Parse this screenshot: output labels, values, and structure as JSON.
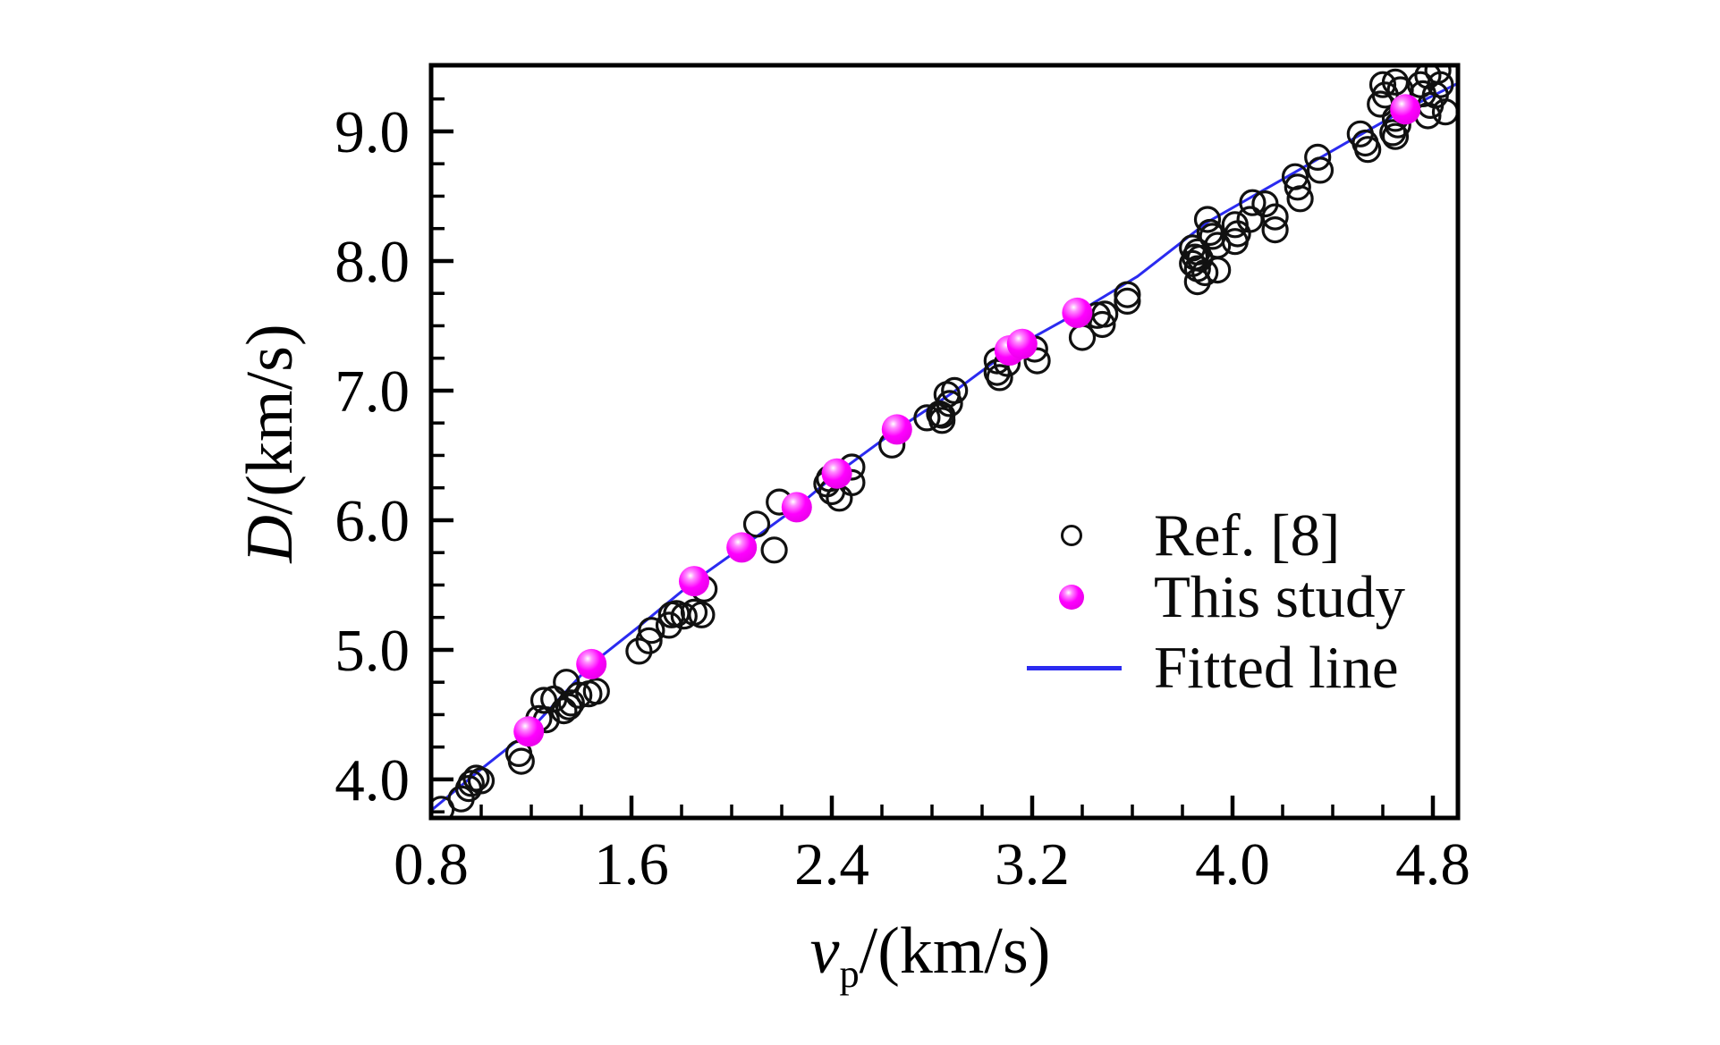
{
  "figure": {
    "background": "#ffffff"
  },
  "chart_data": {
    "type": "scatter",
    "title": "",
    "xlabel_parts": {
      "variable": "v",
      "subscript": "p",
      "unit": "/(km/s)"
    },
    "ylabel_parts": {
      "variable": "D",
      "unit": "/(km/s)"
    },
    "x_axis": {
      "min": 0.8,
      "max": 4.9,
      "major_ticks": [
        0.8,
        1.6,
        2.4,
        3.2,
        4.0,
        4.8
      ],
      "major_tick_labels": [
        "0.8",
        "1.6",
        "2.4",
        "3.2",
        "4.0",
        "4.8"
      ],
      "minor_tick_step": 0.2
    },
    "y_axis": {
      "min": 3.703,
      "max": 9.51,
      "major_ticks": [
        4.0,
        5.0,
        6.0,
        7.0,
        8.0,
        9.0
      ],
      "major_tick_labels": [
        "4.0",
        "5.0",
        "6.0",
        "7.0",
        "8.0",
        "9.0"
      ],
      "minor_tick_step": 0.25
    },
    "grid": false,
    "colors": {
      "ref8": "#111111",
      "this_study": "#ff00ff",
      "fitted_line": "#2b2bf0",
      "axis": "#000000"
    },
    "legend": {
      "position": "inside-right",
      "entries": [
        {
          "label": "Ref. [8]",
          "marker": "open-circle"
        },
        {
          "label": "This study",
          "marker": "filled-ball"
        },
        {
          "label": "Fitted line",
          "marker": "line"
        }
      ]
    },
    "series": [
      {
        "name": "Ref. [8]",
        "type": "scatter-open",
        "points": [
          [
            0.84,
            3.77
          ],
          [
            0.92,
            3.85
          ],
          [
            0.95,
            3.93
          ],
          [
            0.96,
            3.97
          ],
          [
            0.98,
            4.01
          ],
          [
            1.0,
            3.99
          ],
          [
            1.15,
            4.2
          ],
          [
            1.16,
            4.14
          ],
          [
            1.23,
            4.47
          ],
          [
            1.26,
            4.46
          ],
          [
            1.25,
            4.61
          ],
          [
            1.29,
            4.62
          ],
          [
            1.33,
            4.53
          ],
          [
            1.35,
            4.56
          ],
          [
            1.34,
            4.75
          ],
          [
            1.36,
            4.59
          ],
          [
            1.39,
            4.65
          ],
          [
            1.43,
            4.66
          ],
          [
            1.46,
            4.68
          ],
          [
            1.63,
            4.99
          ],
          [
            1.67,
            5.07
          ],
          [
            1.68,
            5.15
          ],
          [
            1.75,
            5.19
          ],
          [
            1.76,
            5.27
          ],
          [
            1.78,
            5.28
          ],
          [
            1.81,
            5.26
          ],
          [
            1.85,
            5.29
          ],
          [
            1.88,
            5.27
          ],
          [
            1.89,
            5.47
          ],
          [
            2.1,
            5.97
          ],
          [
            2.17,
            5.77
          ],
          [
            2.19,
            6.14
          ],
          [
            2.38,
            6.28
          ],
          [
            2.39,
            6.32
          ],
          [
            2.4,
            6.22
          ],
          [
            2.43,
            6.17
          ],
          [
            2.48,
            6.41
          ],
          [
            2.48,
            6.29
          ],
          [
            2.64,
            6.58
          ],
          [
            2.78,
            6.79
          ],
          [
            2.84,
            6.81
          ],
          [
            2.86,
            6.97
          ],
          [
            2.89,
            7.0
          ],
          [
            2.87,
            6.9
          ],
          [
            2.83,
            6.82
          ],
          [
            2.84,
            6.77
          ],
          [
            3.06,
            7.23
          ],
          [
            3.06,
            7.14
          ],
          [
            3.07,
            7.1
          ],
          [
            3.1,
            7.21
          ],
          [
            3.21,
            7.32
          ],
          [
            3.22,
            7.23
          ],
          [
            3.4,
            7.41
          ],
          [
            3.46,
            7.58
          ],
          [
            3.48,
            7.51
          ],
          [
            3.49,
            7.59
          ],
          [
            3.58,
            7.74
          ],
          [
            3.58,
            7.69
          ],
          [
            3.9,
            8.32
          ],
          [
            3.92,
            8.19
          ],
          [
            3.94,
            8.12
          ],
          [
            3.84,
            8.1
          ],
          [
            3.86,
            8.07
          ],
          [
            3.85,
            8.03
          ],
          [
            3.87,
            8.02
          ],
          [
            3.84,
            7.98
          ],
          [
            3.86,
            7.94
          ],
          [
            3.89,
            7.91
          ],
          [
            3.94,
            7.93
          ],
          [
            3.86,
            7.84
          ],
          [
            3.91,
            8.22
          ],
          [
            4.01,
            8.28
          ],
          [
            4.02,
            8.21
          ],
          [
            4.01,
            8.15
          ],
          [
            4.08,
            8.45
          ],
          [
            4.13,
            8.44
          ],
          [
            4.07,
            8.32
          ],
          [
            4.17,
            8.34
          ],
          [
            4.17,
            8.24
          ],
          [
            4.25,
            8.65
          ],
          [
            4.26,
            8.57
          ],
          [
            4.27,
            8.48
          ],
          [
            4.34,
            8.8
          ],
          [
            4.35,
            8.7
          ],
          [
            4.51,
            8.98
          ],
          [
            4.53,
            8.91
          ],
          [
            4.54,
            8.86
          ],
          [
            4.6,
            9.36
          ],
          [
            4.65,
            9.38
          ],
          [
            4.67,
            9.32
          ],
          [
            4.61,
            9.28
          ],
          [
            4.59,
            9.21
          ],
          [
            4.75,
            9.36
          ],
          [
            4.76,
            9.29
          ],
          [
            4.78,
            9.43
          ],
          [
            4.82,
            9.47
          ],
          [
            4.79,
            9.2
          ],
          [
            4.83,
            9.36
          ],
          [
            4.81,
            9.28
          ],
          [
            4.66,
            9.05
          ],
          [
            4.64,
            8.99
          ],
          [
            4.65,
            9.1
          ],
          [
            4.85,
            9.15
          ],
          [
            4.78,
            9.12
          ],
          [
            4.65,
            8.96
          ]
        ]
      },
      {
        "name": "This study",
        "type": "scatter-filled",
        "points": [
          [
            1.19,
            4.37
          ],
          [
            1.44,
            4.89
          ],
          [
            1.85,
            5.53
          ],
          [
            2.04,
            5.79
          ],
          [
            2.26,
            6.1
          ],
          [
            2.42,
            6.36
          ],
          [
            2.66,
            6.7
          ],
          [
            3.11,
            7.31
          ],
          [
            3.16,
            7.36
          ],
          [
            3.38,
            7.6
          ],
          [
            4.69,
            9.17
          ]
        ]
      },
      {
        "name": "Fitted line",
        "type": "line",
        "points": [
          [
            0.8,
            3.76
          ],
          [
            1.0,
            4.08
          ],
          [
            1.19,
            4.37
          ],
          [
            1.44,
            4.89
          ],
          [
            1.63,
            5.18
          ],
          [
            1.85,
            5.53
          ],
          [
            2.04,
            5.79
          ],
          [
            2.26,
            6.1
          ],
          [
            2.42,
            6.36
          ],
          [
            2.66,
            6.7
          ],
          [
            2.88,
            6.98
          ],
          [
            3.11,
            7.31
          ],
          [
            3.38,
            7.6
          ],
          [
            3.62,
            7.88
          ],
          [
            3.9,
            8.3
          ],
          [
            4.2,
            8.63
          ],
          [
            4.48,
            8.94
          ],
          [
            4.69,
            9.17
          ],
          [
            4.91,
            9.38
          ]
        ]
      }
    ]
  }
}
